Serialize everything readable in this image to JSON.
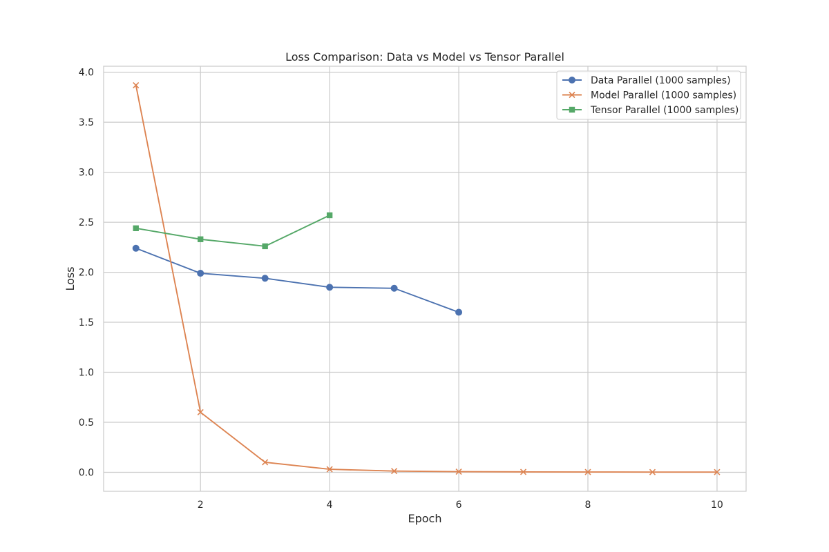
{
  "chart_data": {
    "type": "line",
    "title": "Loss Comparison: Data vs Model vs Tensor Parallel",
    "xlabel": "Epoch",
    "ylabel": "Loss",
    "xlim": [
      0.5,
      10.45
    ],
    "ylim": [
      -0.19,
      4.06
    ],
    "xticks": [
      2,
      4,
      6,
      8,
      10
    ],
    "yticks": [
      0.0,
      0.5,
      1.0,
      1.5,
      2.0,
      2.5,
      3.0,
      3.5,
      4.0
    ],
    "grid": true,
    "legend_position": "top-right",
    "series": [
      {
        "name": "Data Parallel (1000 samples)",
        "color": "#4c72b0",
        "marker": "circle",
        "x": [
          1,
          2,
          3,
          4,
          5,
          6
        ],
        "y": [
          2.24,
          1.99,
          1.94,
          1.85,
          1.84,
          1.6
        ]
      },
      {
        "name": "Model Parallel (1000 samples)",
        "color": "#dd8452",
        "marker": "x",
        "x": [
          1,
          2,
          3,
          4,
          5,
          6,
          7,
          8,
          9,
          10
        ],
        "y": [
          3.87,
          0.6,
          0.1,
          0.03,
          0.012,
          0.006,
          0.004,
          0.003,
          0.002,
          0.002
        ]
      },
      {
        "name": "Tensor Parallel (1000 samples)",
        "color": "#55a868",
        "marker": "square",
        "x": [
          1,
          2,
          3,
          4
        ],
        "y": [
          2.44,
          2.33,
          2.26,
          2.57
        ]
      }
    ]
  },
  "style": {
    "grid_color": "#cccccc",
    "spine_color": "#cccccc",
    "background": "#ffffff"
  }
}
